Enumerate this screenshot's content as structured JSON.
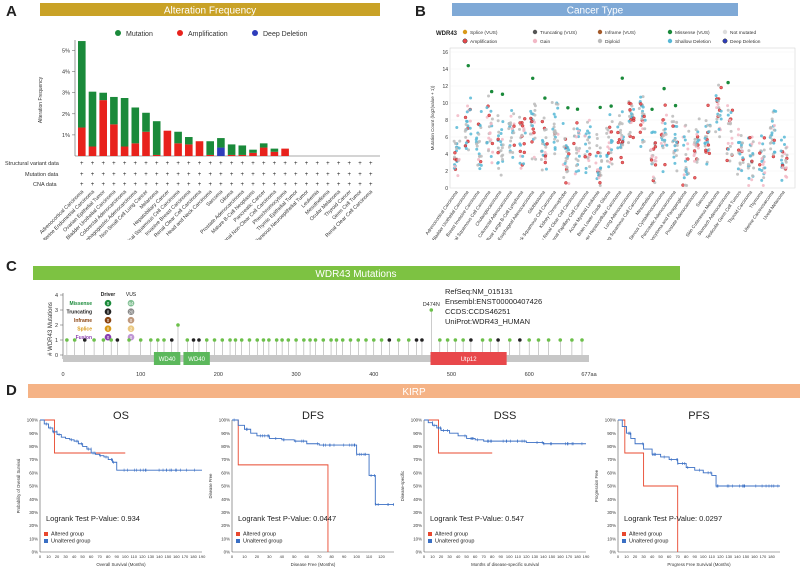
{
  "panels": {
    "A": {
      "letter": "A",
      "title": "Alteration Frequency",
      "legend": [
        {
          "label": "Mutation",
          "color": "#1a8a3a"
        },
        {
          "label": "Amplification",
          "color": "#e8221c"
        },
        {
          "label": "Deep Deletion",
          "color": "#2e3dbb"
        }
      ],
      "ylabel": "Alteration Frequency",
      "yticks": [
        "5%",
        "4%",
        "3%",
        "2%",
        "1%"
      ],
      "track_labels": [
        "Structural variant data",
        "Mutation data",
        "CNA data"
      ]
    },
    "B": {
      "letter": "B",
      "title": "Cancer Type",
      "gene": "WDR43",
      "legend_items": [
        "Splice (VUS)",
        "Truncating (VUS)",
        "Inframe (VUS)",
        "Missense (VUS)",
        "Not mutated",
        "Amplification",
        "Gain",
        "Diploid",
        "Shallow Deletion",
        "Deep Deletion"
      ],
      "ylabel": "Mutation Count (log2(value + 1))",
      "yticks": [
        "16",
        "14",
        "12",
        "10",
        "8",
        "6",
        "4",
        "2",
        "0"
      ],
      "categories": [
        "Adrenocortical Carcinoma",
        "Bladder Urothelial Carcinoma",
        "Breast Invasive Carcinoma",
        "Cervical Squamous Cell Carcinoma",
        "Cholangiocarcinoma",
        "Colorectal Adenocarcinoma",
        "Diffuse Large B-Cell Lymphoma",
        "Esophageal Adenocarcinoma",
        "Glioblastoma",
        "Head and Neck Squamous Cell Carcinoma",
        "Kidney Chromophobe",
        "Kidney Renal Clear Cell Carcinoma",
        "Kidney Renal Papillary Cell Carcinoma",
        "Acute Myeloid Leukemia",
        "Brain Lower Grade Glioma",
        "Liver Hepatocellular Carcinoma",
        "Lung Adenocarcinoma",
        "Lung Squamous Cell Carcinoma",
        "Mesothelioma",
        "Ovarian Serous Cystadenocarcinoma",
        "Pancreatic Adenocarcinoma",
        "Pheochromocytoma and Paraganglioma",
        "Prostate Adenocarcinoma",
        "Sarcoma",
        "Skin Cutaneous Melanoma",
        "Stomach Adenocarcinoma",
        "Testicular Germ Cell Tumors",
        "Thyroid Carcinoma",
        "Thymoma",
        "Uterine Carcinosarcoma",
        "Uveal Melanoma"
      ]
    },
    "C": {
      "letter": "C",
      "title": "WDR43 Mutations",
      "ylabel": "# WDR43 Mutations",
      "yticks": [
        "4",
        "3",
        "2",
        "1",
        "0"
      ],
      "driver_header": "Driver",
      "vus_header": "VUS",
      "driver_rows": [
        {
          "label": "Missense",
          "color": "#1a8a3a",
          "driver": "0",
          "vus": "64"
        },
        {
          "label": "Truncating",
          "color": "#222222",
          "driver": "0",
          "vus": "20"
        },
        {
          "label": "Inframe",
          "color": "#8b4513",
          "driver": "0",
          "vus": "0"
        },
        {
          "label": "Splice",
          "color": "#d99a1a",
          "driver": "0",
          "vus": "2"
        },
        {
          "label": "Fusion",
          "color": "#8a3fb0",
          "driver": "0",
          "vus": "0"
        }
      ],
      "peak_label": "D474N",
      "domains": [
        {
          "label": "WD40",
          "color": "#5cb85c"
        },
        {
          "label": "WD40",
          "color": "#5cb85c"
        },
        {
          "label": "Utp12",
          "color": "#e8484b"
        }
      ],
      "xticks": [
        "0",
        "100",
        "200",
        "300",
        "400",
        "500",
        "600",
        "677aa"
      ],
      "info": [
        "RefSeq:NM_015131",
        "Ensembl:ENST00000407426",
        "CCDS:CCDS46251",
        "UniProt:WDR43_HUMAN"
      ]
    },
    "D": {
      "letter": "D",
      "title": "KIRP",
      "legend_altered": "Altered group",
      "legend_unaltered": "Unaltered group",
      "altered_color": "#e8482f",
      "unaltered_color": "#3a6fc4",
      "yticks": [
        "100%",
        "90%",
        "80%",
        "70%",
        "60%",
        "50%",
        "40%",
        "30%",
        "20%",
        "10%",
        "0%"
      ],
      "plots": [
        {
          "title": "OS",
          "ylabel": "Probability of Overall Survival",
          "xlabel": "Overall Survival (Months)",
          "pvalue": "Logrank Test P-Value: 0.934",
          "xticks": [
            "0",
            "10",
            "20",
            "30",
            "40",
            "50",
            "60",
            "70",
            "80",
            "90",
            "100",
            "110",
            "120",
            "130",
            "140",
            "150",
            "160",
            "170",
            "180",
            "190"
          ]
        },
        {
          "title": "DFS",
          "ylabel": "Disease Free",
          "xlabel": "Disease Free (Months)",
          "pvalue": "Logrank Test P-Value: 0.0447",
          "xticks": [
            "0",
            "10",
            "20",
            "30",
            "40",
            "50",
            "60",
            "70",
            "80",
            "90",
            "100",
            "110",
            "120"
          ]
        },
        {
          "title": "DSS",
          "ylabel": "Disease-specific",
          "xlabel": "Months of disease-specific survival",
          "pvalue": "Logrank Test P-Value: 0.547",
          "xticks": [
            "0",
            "10",
            "20",
            "30",
            "40",
            "50",
            "60",
            "70",
            "80",
            "90",
            "100",
            "110",
            "120",
            "130",
            "140",
            "150",
            "160",
            "170",
            "180",
            "190"
          ]
        },
        {
          "title": "PFS",
          "ylabel": "Progression Free",
          "xlabel": "Progress Free Survival (Months)",
          "pvalue": "Logrank Test P-Value: 0.0297",
          "xticks": [
            "0",
            "10",
            "20",
            "30",
            "40",
            "50",
            "60",
            "70",
            "80",
            "90",
            "100",
            "110",
            "120",
            "130",
            "140",
            "150",
            "160",
            "170",
            "180"
          ]
        }
      ]
    }
  },
  "chart_data": [
    {
      "type": "bar",
      "title": "Alteration Frequency",
      "ylabel": "Alteration Frequency",
      "ylim": [
        0,
        5.5
      ],
      "categories": [
        "Adrenocortical Carcinoma",
        "Uterine Endometrial Carcinoma",
        "Ovarian Epithelial Tumor",
        "Bladder Urothelial Carcinoma",
        "Colorectal Adenocarcinoma",
        "Esophagogastric Adenocarcinoma",
        "Non-Small Cell Lung Cancer",
        "Melanoma",
        "Hepatobiliary Cancer",
        "Cervical Squamous Cell Carcinoma",
        "Invasive Breast Carcinoma",
        "Renal Clear Cell Carcinoma",
        "Head and Neck Carcinoma",
        "Sarcoma",
        "Glioma",
        "Prostate Adenocarcinoma",
        "Mature B-Cell Neoplasms",
        "Pancreatic Cancer",
        "Renal Non-Clear Cell Carcinoma",
        "Pheochromocytoma",
        "Thymic Epithelial Tumor",
        "Miscellaneous Neuroepithelial Tumor",
        "Leukemia",
        "Mesothelioma",
        "Ocular Melanoma",
        "Thyroid Cancer",
        "Germ Cell Tumor",
        "Renal Clear Cell Carcinoma"
      ],
      "series": [
        {
          "name": "Mutation",
          "values": [
            4.1,
            2.6,
            0.35,
            1.3,
            2.3,
            1.7,
            0.9,
            1.6,
            0,
            0.55,
            0.35,
            0,
            0.65,
            0.45,
            0.5,
            0.45,
            0.15,
            0.2,
            0.15,
            0,
            0,
            0,
            0,
            0,
            0,
            0,
            0,
            0
          ]
        },
        {
          "name": "Amplification",
          "values": [
            1.35,
            0.45,
            2.65,
            1.5,
            0.45,
            0.6,
            1.15,
            0.05,
            1.2,
            0.6,
            0.55,
            0.7,
            0.05,
            0,
            0.05,
            0.05,
            0.15,
            0.4,
            0.2,
            0.35,
            0,
            0,
            0,
            0,
            0,
            0,
            0,
            0
          ]
        },
        {
          "name": "Deep Deletion",
          "values": [
            0,
            0,
            0,
            0,
            0,
            0,
            0,
            0,
            0,
            0,
            0,
            0,
            0,
            0.4,
            0,
            0,
            0,
            0,
            0,
            0,
            0,
            0,
            0,
            0,
            0,
            0,
            0,
            0
          ]
        }
      ]
    },
    {
      "type": "scatter",
      "title": "Cancer Type",
      "ylabel": "Mutation Count (log2(value + 1))",
      "ylim": [
        0,
        16
      ],
      "medians": [
        4.5,
        7.5,
        5.5,
        7,
        5,
        6.5,
        5.5,
        7,
        5.5,
        7,
        4,
        5,
        5,
        3.5,
        5,
        6,
        8,
        8,
        4.5,
        5.5,
        5.5,
        3.5,
        5,
        5.5,
        9,
        6.5,
        4,
        3.5,
        3.5,
        6,
        3.5
      ]
    },
    {
      "type": "lollipop",
      "title": "WDR43 Mutations",
      "protein_length": 677,
      "mutations": [
        [
          5,
          1
        ],
        [
          15,
          1
        ],
        [
          28,
          1
        ],
        [
          40,
          1
        ],
        [
          52,
          1
        ],
        [
          62,
          1
        ],
        [
          70,
          1
        ],
        [
          85,
          1
        ],
        [
          100,
          1
        ],
        [
          113,
          1
        ],
        [
          122,
          1
        ],
        [
          130,
          1
        ],
        [
          140,
          1
        ],
        [
          148,
          2
        ],
        [
          160,
          1
        ],
        [
          168,
          1
        ],
        [
          175,
          1
        ],
        [
          185,
          1
        ],
        [
          195,
          1
        ],
        [
          205,
          1
        ],
        [
          215,
          1
        ],
        [
          222,
          1
        ],
        [
          230,
          1
        ],
        [
          240,
          1
        ],
        [
          250,
          1
        ],
        [
          258,
          1
        ],
        [
          265,
          1
        ],
        [
          275,
          1
        ],
        [
          282,
          1
        ],
        [
          290,
          1
        ],
        [
          300,
          1
        ],
        [
          310,
          1
        ],
        [
          318,
          1
        ],
        [
          325,
          1
        ],
        [
          335,
          1
        ],
        [
          345,
          1
        ],
        [
          352,
          1
        ],
        [
          360,
          1
        ],
        [
          370,
          1
        ],
        [
          380,
          1
        ],
        [
          390,
          1
        ],
        [
          400,
          1
        ],
        [
          410,
          1
        ],
        [
          420,
          1
        ],
        [
          432,
          1
        ],
        [
          445,
          1
        ],
        [
          455,
          1
        ],
        [
          462,
          1
        ],
        [
          474,
          3
        ],
        [
          485,
          1
        ],
        [
          495,
          1
        ],
        [
          505,
          1
        ],
        [
          515,
          1
        ],
        [
          525,
          1
        ],
        [
          540,
          1
        ],
        [
          550,
          1
        ],
        [
          560,
          1
        ],
        [
          575,
          1
        ],
        [
          588,
          1
        ],
        [
          600,
          1
        ],
        [
          612,
          1
        ],
        [
          625,
          1
        ],
        [
          640,
          1
        ],
        [
          655,
          1
        ],
        [
          668,
          1
        ]
      ],
      "domains": [
        {
          "name": "WD40",
          "start": 117,
          "end": 151
        },
        {
          "name": "WD40",
          "start": 155,
          "end": 189
        },
        {
          "name": "Utp12",
          "start": 473,
          "end": 571
        }
      ]
    },
    {
      "type": "line",
      "title": "OS",
      "xlim": [
        0,
        190
      ],
      "series": [
        {
          "name": "Altered group",
          "x": [
            0,
            10,
            17,
            17,
            100
          ],
          "y": [
            100,
            100,
            100,
            75,
            75
          ]
        },
        {
          "name": "Unaltered group",
          "x": [
            0,
            5,
            10,
            15,
            20,
            25,
            30,
            35,
            40,
            45,
            50,
            55,
            60,
            65,
            70,
            75,
            80,
            85,
            90,
            95,
            100,
            190
          ],
          "y": [
            100,
            97,
            94,
            91,
            89,
            87,
            86,
            85,
            84,
            82,
            80,
            78,
            75,
            74,
            73,
            72,
            70,
            68,
            62,
            62,
            62,
            62
          ]
        }
      ]
    },
    {
      "type": "line",
      "title": "DFS",
      "xlim": [
        0,
        130
      ],
      "series": [
        {
          "name": "Altered group",
          "x": [
            0,
            5,
            5,
            77,
            77
          ],
          "y": [
            100,
            100,
            66,
            66,
            0
          ]
        },
        {
          "name": "Unaltered group",
          "x": [
            0,
            5,
            10,
            15,
            20,
            30,
            40,
            50,
            60,
            70,
            80,
            90,
            100,
            110,
            115,
            130
          ],
          "y": [
            100,
            96,
            93,
            90,
            88,
            86,
            85,
            84,
            82,
            81,
            81,
            81,
            74,
            58,
            36,
            36
          ]
        }
      ]
    },
    {
      "type": "line",
      "title": "DSS",
      "xlim": [
        0,
        190
      ],
      "series": [
        {
          "name": "Altered group",
          "x": [
            0,
            17,
            17,
            80
          ],
          "y": [
            100,
            100,
            75,
            75
          ]
        },
        {
          "name": "Unaltered group",
          "x": [
            0,
            5,
            10,
            15,
            20,
            30,
            40,
            50,
            60,
            70,
            80,
            90,
            100,
            120,
            140,
            190
          ],
          "y": [
            100,
            98,
            96,
            94,
            92,
            90,
            88,
            86,
            85,
            84,
            84,
            84,
            84,
            83,
            82,
            82
          ]
        }
      ]
    },
    {
      "type": "line",
      "title": "PFS",
      "xlim": [
        0,
        190
      ],
      "series": [
        {
          "name": "Altered group",
          "x": [
            0,
            8,
            8,
            30,
            30,
            70,
            70
          ],
          "y": [
            100,
            100,
            75,
            75,
            50,
            50,
            0
          ]
        },
        {
          "name": "Unaltered group",
          "x": [
            0,
            5,
            10,
            15,
            20,
            30,
            40,
            50,
            60,
            70,
            80,
            90,
            100,
            110,
            115,
            190
          ],
          "y": [
            100,
            95,
            90,
            86,
            82,
            78,
            74,
            72,
            70,
            67,
            64,
            62,
            60,
            58,
            50,
            50
          ]
        }
      ]
    }
  ]
}
